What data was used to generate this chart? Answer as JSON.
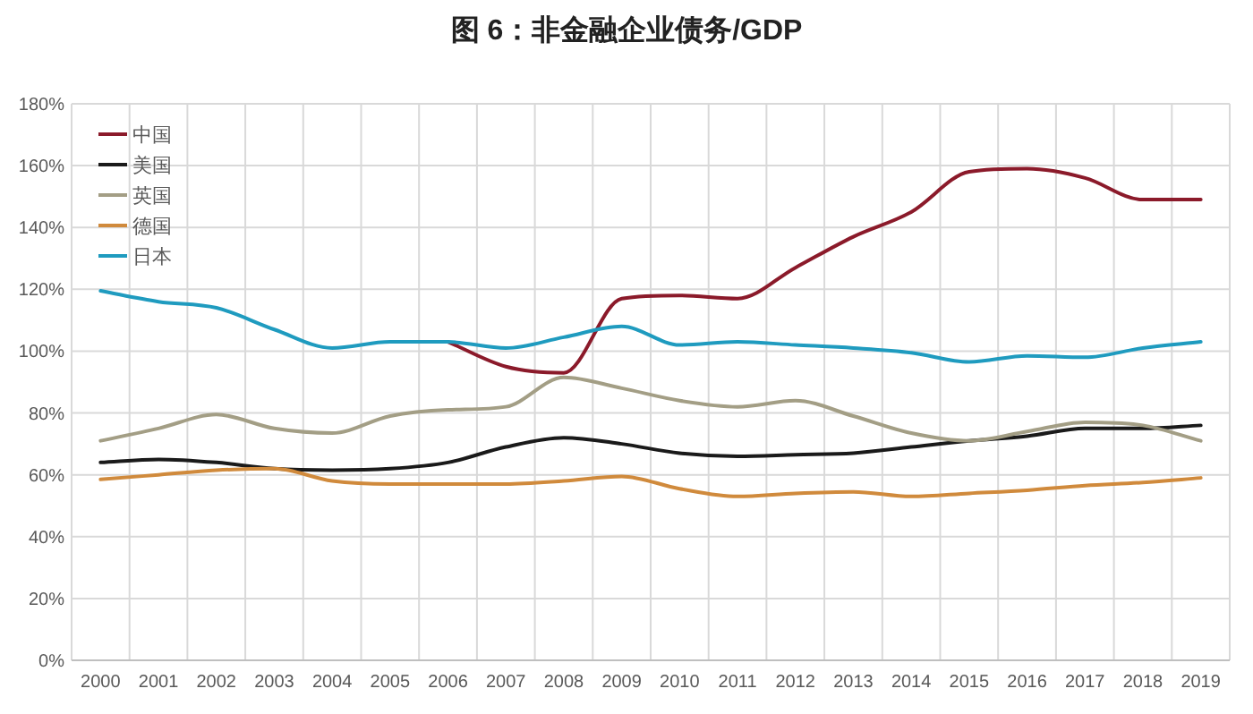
{
  "chart_data": {
    "type": "line",
    "title": "图 6：非金融企业债务/GDP",
    "categories": [
      "2000",
      "2001",
      "2002",
      "2003",
      "2004",
      "2005",
      "2006",
      "2007",
      "2008",
      "2009",
      "2010",
      "2011",
      "2012",
      "2013",
      "2014",
      "2015",
      "2016",
      "2017",
      "2018",
      "2019"
    ],
    "series": [
      {
        "name": "中国",
        "color": "#8b1a2a",
        "values": [
          null,
          null,
          null,
          null,
          null,
          null,
          103,
          95,
          93,
          117,
          118,
          117,
          127,
          137,
          145,
          158,
          159,
          156,
          149,
          149
        ]
      },
      {
        "name": "美国",
        "color": "#1a1a1a",
        "values": [
          64,
          65,
          64,
          62,
          61.5,
          62,
          64,
          69,
          72,
          70,
          67,
          66,
          66.5,
          67,
          69,
          71,
          72.5,
          75,
          75,
          76
        ]
      },
      {
        "name": "英国",
        "color": "#a39e85",
        "values": [
          71,
          75,
          79.5,
          75,
          73.5,
          79,
          81,
          82,
          91.5,
          88,
          84,
          82,
          84,
          79,
          73.5,
          71,
          74,
          77,
          76,
          71
        ]
      },
      {
        "name": "德国",
        "color": "#d08a3c",
        "values": [
          58.5,
          60,
          61.5,
          62,
          58,
          57,
          57,
          57,
          58,
          59.5,
          55.5,
          53,
          54,
          54.5,
          53,
          54,
          55,
          56.5,
          57.5,
          59
        ]
      },
      {
        "name": "日本",
        "color": "#1f9bbf",
        "values": [
          119.5,
          116,
          114,
          107,
          101,
          103,
          103,
          101,
          104.5,
          108,
          102,
          103,
          102,
          101,
          99.5,
          96.5,
          98.5,
          98,
          101,
          103
        ]
      }
    ],
    "ylim": [
      0,
      180
    ],
    "yticks": [
      {
        "value": 0,
        "label": "0%"
      },
      {
        "value": 20,
        "label": "20%"
      },
      {
        "value": 40,
        "label": "40%"
      },
      {
        "value": 60,
        "label": "60%"
      },
      {
        "value": 80,
        "label": "80%"
      },
      {
        "value": 100,
        "label": "100%"
      },
      {
        "value": 120,
        "label": "120%"
      },
      {
        "value": 140,
        "label": "140%"
      },
      {
        "value": 160,
        "label": "160%"
      },
      {
        "value": 180,
        "label": "180%"
      }
    ],
    "grid": true,
    "legend": "top left",
    "marker": "none",
    "line_style": "solid"
  }
}
